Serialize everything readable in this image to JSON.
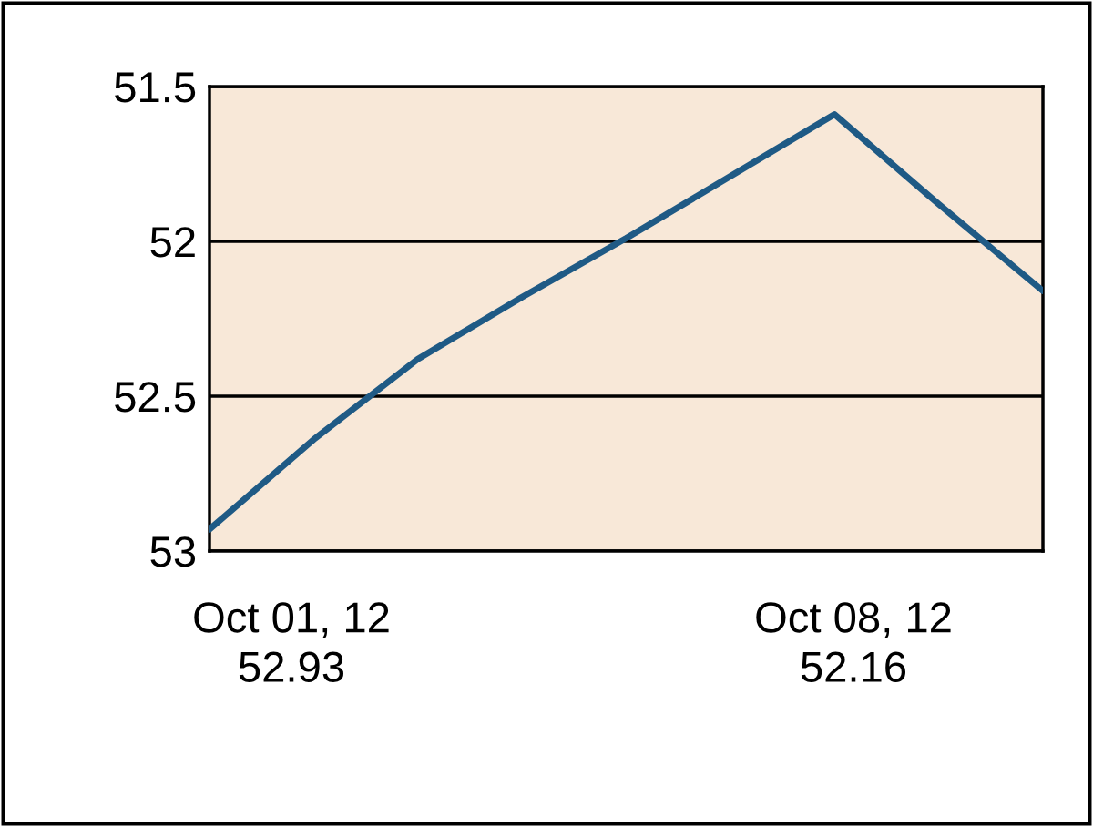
{
  "chart_data": {
    "type": "line",
    "categories": [
      null,
      null,
      null,
      null,
      null,
      null,
      null,
      null,
      null
    ],
    "series": [
      {
        "color": "#1f5a85",
        "values": [
          52.93,
          52.64,
          52.38,
          52.18,
          51.99,
          51.79,
          51.59,
          51.88,
          52.16
        ]
      }
    ],
    "ylim": [
      53,
      51.5
    ],
    "yticks": [
      51.5,
      52,
      52.5,
      53
    ],
    "grid": "y",
    "tick_labels": "y",
    "legend": false,
    "annotations": [
      "Oct 01, 12\n52.93",
      "Oct 08, 12\n52.16"
    ]
  }
}
